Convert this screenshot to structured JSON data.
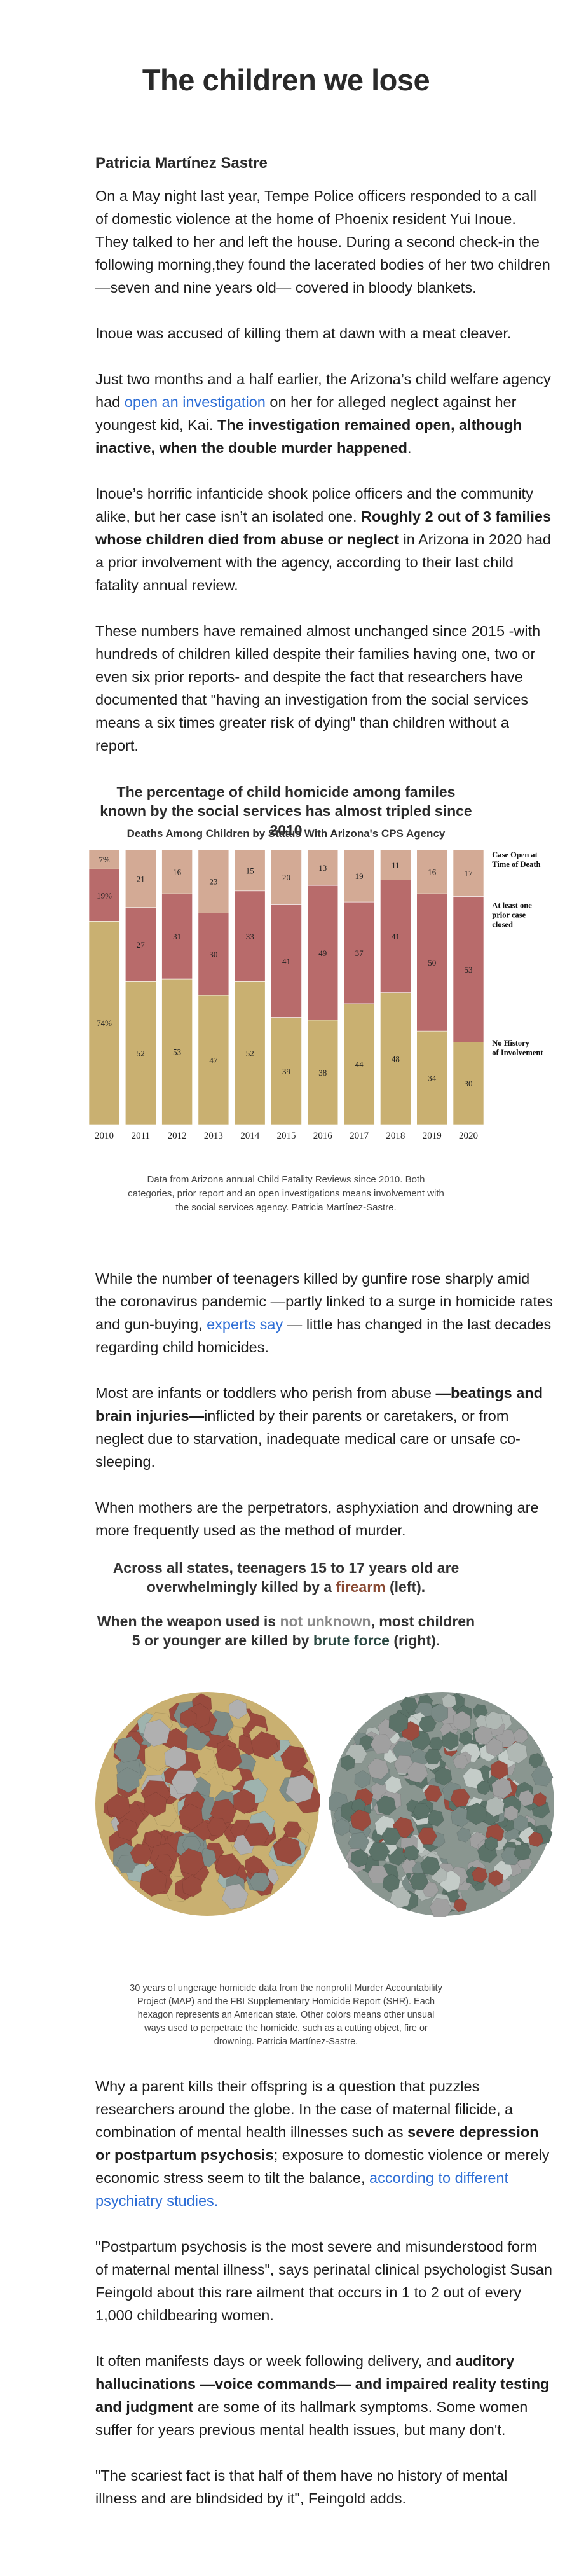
{
  "article": {
    "title": "The children we lose",
    "author": "Patricia Martínez Sastre",
    "p1": "On a May night last year, Tempe Police officers responded to a call of domestic violence at the home of Phoenix resident Yui Inoue. They talked to her and left the house. During a second check-in the following morning,they found the lacerated bodies of her two children —seven and nine years old— covered in bloody blankets.",
    "p2": "Inoue was accused of killing them at dawn with a meat cleaver.",
    "p3a": "Just two months and a half earlier, the Arizona’s child welfare agency had ",
    "p3link": "open an investigation",
    "p3b": " on her for alleged neglect against her youngest kid, Kai. ",
    "p3bold": "The investigation remained open, although inactive, when the double murder happened",
    "p3c": ".",
    "p4a": "Inoue’s horrific infanticide shook police officers and the community alike, but her case isn’t an isolated one. ",
    "p4bold": "Roughly 2 out of 3 families whose children died from abuse or neglect",
    "p4b": " in Arizona in 2020 had a prior involvement with the agency, according to their last child fatality annual review.",
    "p5": "These numbers have remained almost unchanged since 2015 -with hundreds of children killed despite their families having one, two or even six prior reports- and despite the fact that researchers have documented that \"having an investigation from the social services means a six times greater risk of dying\" than children without a report.",
    "chart_title": "The percentage of child homicide among familes known by the social services has almost tripled since 2010",
    "chart_subtitle": "Deaths Among Children by Status With Arizona's CPS Agency",
    "chart_caption": "Data from Arizona annual Child Fatality Reviews since 2010. Both categories, prior report and an open investigations means involvement with the social services agency. Patricia Martínez-Sastre.",
    "p6a": "While the number of teenagers killed by gunfire rose sharply amid the coronavirus pandemic —partly linked to a surge in homicide rates and gun-buying, ",
    "p6link": "experts say",
    "p6b": " — little has changed in the last decades regarding child homicides.",
    "p7a": "Most are infants or toddlers who perish from abuse ",
    "p7bold": "—beatings and brain injuries—",
    "p7b": "inflicted by their parents or caretakers, or from neglect due to starvation, inadequate medical care or unsafe co-sleeping.",
    "p8": "When mothers are the perpetrators, asphyxiation and drowning are more frequently used as the method of murder.",
    "callout1a": "Across all states, teenagers 15 to 17 years old are overwhelmingly killed by a ",
    "callout1b": "firearm",
    "callout1c": " (left).",
    "callout2a": "When the weapon used is ",
    "callout2b": "not unknown",
    "callout2c": ", most children 5 or younger are killed by ",
    "callout2d": "brute force",
    "callout2e": " (right).",
    "hex_caption": "30 years of ungerage homicide data from the nonprofit Murder Accountability Project (MAP) and the FBI Supplementary Homicide Report (SHR). Each hexagon represents an American state. Other colors means other unsual ways used to perpetrate the homicide, such as a cutting object, fire or drowning. Patricia Martínez-Sastre.",
    "p9a": "Why a parent kills their offspring is a question that puzzles researchers around the globe. In the case of maternal filicide, a combination of mental health illnesses such as ",
    "p9bold": "severe depression or postpartum psychosis",
    "p9b": "; exposure to domestic violence or merely economic stress seem to tilt the balance, ",
    "p9link": "according to different psychiatry studies.",
    "p10": "\"Postpartum psychosis is the most severe and misunderstood form of maternal mental illness\", says perinatal clinical psychologist Susan Feingold about this rare ailment that occurs in 1 to 2 out of every 1,000 childbearing women.",
    "p11a": "It often manifests days or week following delivery, and ",
    "p11bold": "auditory hallucinations —voice commands— and impaired reality testing and judgment",
    "p11b": " are some of its hallmark symptoms. Some women suffer for years previous mental health issues, but many don't.",
    "p12": "\"The scariest fact is that half of them have no history of mental illness and are blindsided by it\", Feingold adds."
  },
  "colors": {
    "case_open": "#d3aa95",
    "prior_case": "#b86b6b",
    "no_history": "#c9b071",
    "firearm": "#9a4b3e",
    "brute_force": "#5b7268"
  },
  "chart_data": {
    "type": "bar",
    "stacked": true,
    "units": "percent",
    "title": "The percentage of child homicide among familes known by the social services has almost tripled since 2010",
    "subtitle": "Deaths Among Children by Status With Arizona's CPS Agency",
    "categories": [
      "2010",
      "2011",
      "2012",
      "2013",
      "2014",
      "2015",
      "2016",
      "2017",
      "2018",
      "2019",
      "2020"
    ],
    "series": [
      {
        "name": "No History of Involvement",
        "label_lines": [
          "No History",
          "of Involvement"
        ],
        "values": [
          74,
          52,
          53,
          47,
          52,
          39,
          38,
          44,
          48,
          34,
          30
        ]
      },
      {
        "name": "At least one prior case closed",
        "label_lines": [
          "At least one",
          "prior case",
          "closed"
        ],
        "values": [
          19,
          27,
          31,
          30,
          33,
          41,
          49,
          37,
          41,
          50,
          53
        ]
      },
      {
        "name": "Case Open at Time of Death",
        "label_lines": [
          "Case Open at",
          "Time of Death"
        ],
        "values": [
          7,
          21,
          16,
          23,
          15,
          20,
          13,
          19,
          11,
          16,
          17
        ]
      }
    ],
    "value_labels": {
      "No History of Involvement": [
        "74%",
        "52",
        "53",
        "47",
        "52",
        "39",
        "38",
        "44",
        "48",
        "34",
        "30"
      ],
      "At least one prior case closed": [
        "19%",
        "27",
        "31",
        "30",
        "33",
        "41",
        "49",
        "37",
        "41",
        "50",
        "53"
      ],
      "Case Open at Time of Death": [
        "7%",
        "21",
        "16",
        "23",
        "15",
        "20",
        "13",
        "19",
        "11",
        "16",
        "17"
      ]
    },
    "ylim": [
      0,
      100
    ],
    "grid": false,
    "legend": "right"
  }
}
